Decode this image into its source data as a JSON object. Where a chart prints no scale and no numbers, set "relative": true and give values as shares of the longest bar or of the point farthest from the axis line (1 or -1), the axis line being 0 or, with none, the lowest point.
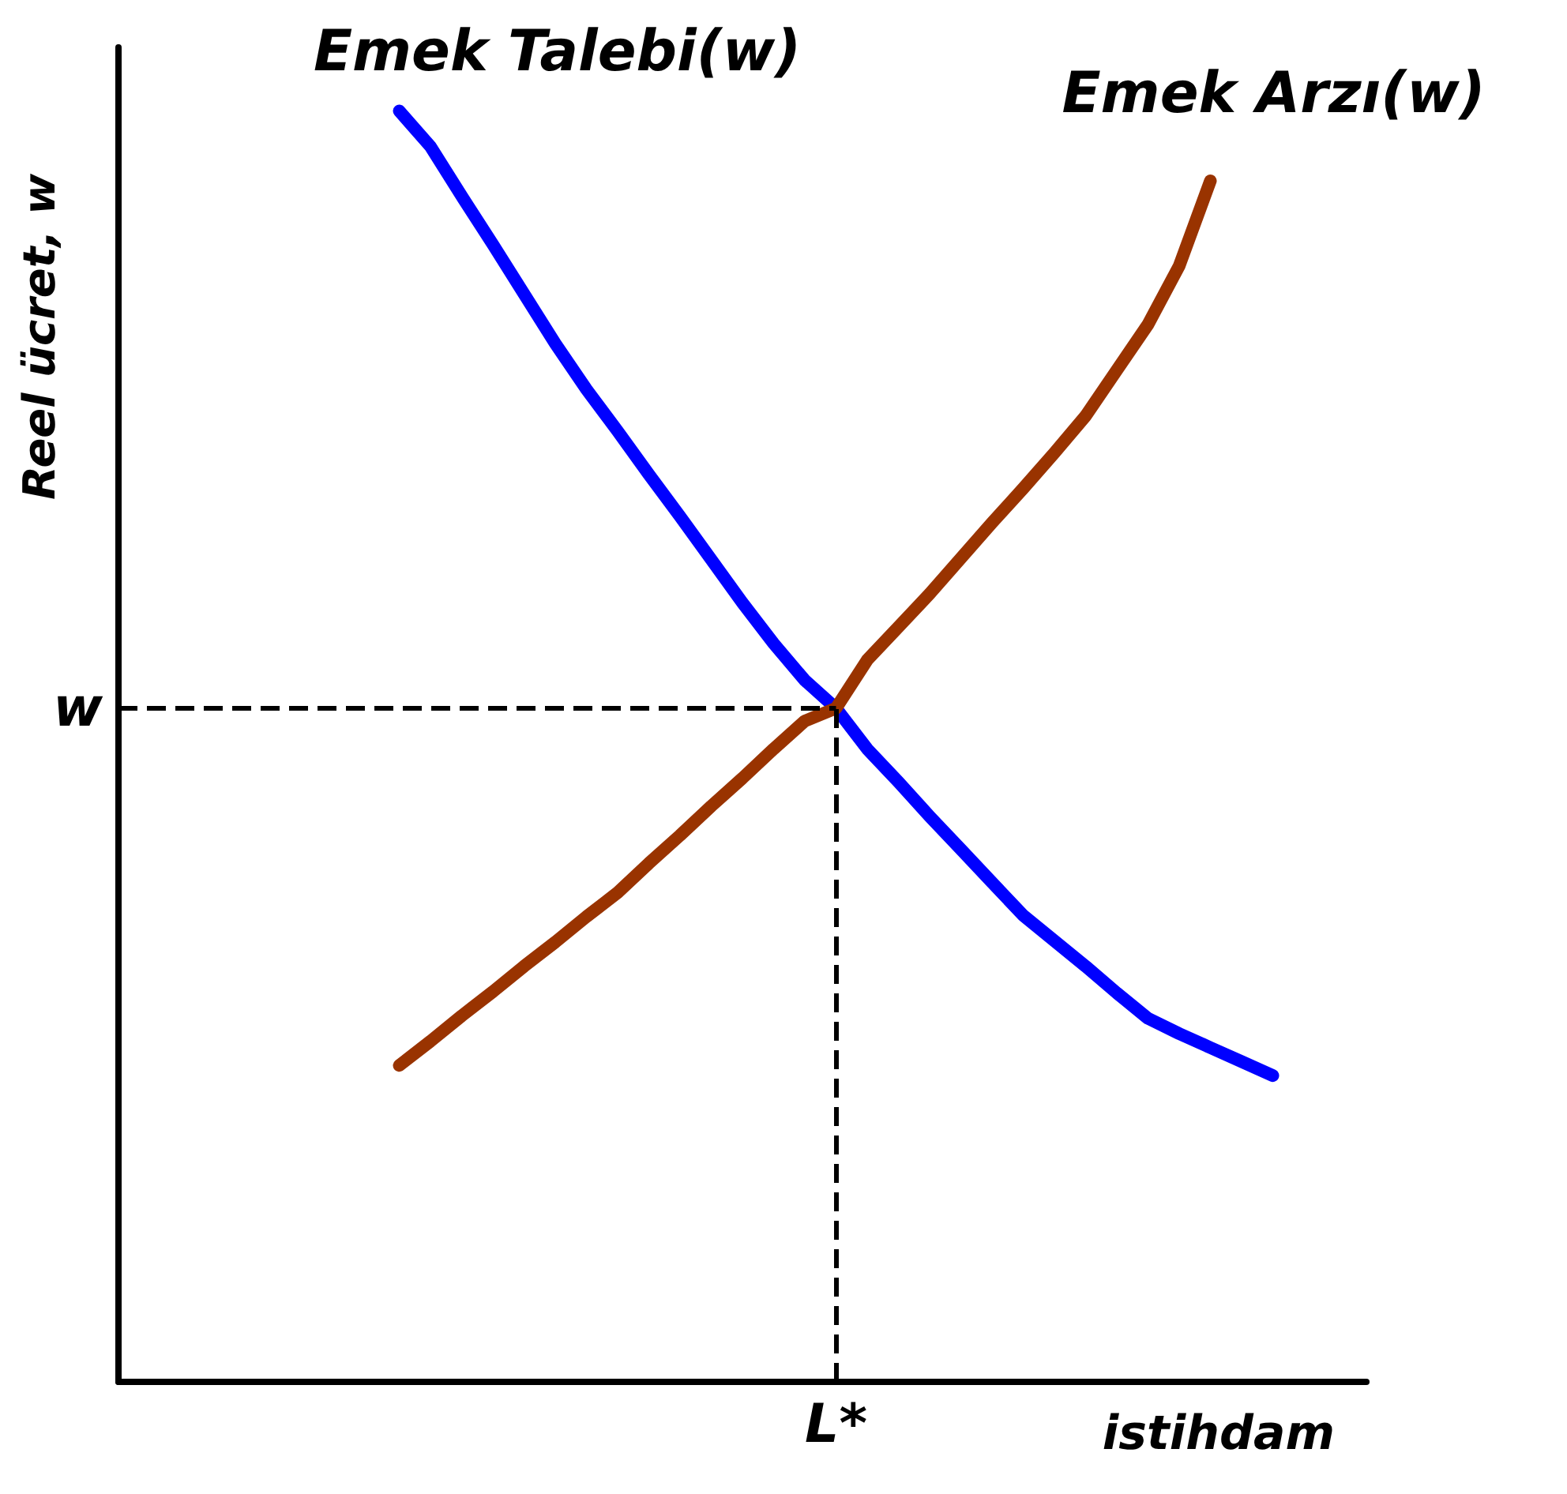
{
  "chart_data": {
    "type": "line",
    "relative": true,
    "xlabel": "istihdam",
    "ylabel": "Reel ücret, w",
    "grid": false,
    "legend": false,
    "marker": "none",
    "line_style": "solid",
    "categories": [
      null,
      null,
      null,
      null,
      null,
      null,
      null,
      null,
      null,
      null,
      null,
      null,
      null,
      null,
      null,
      null,
      null,
      null,
      null,
      null,
      null,
      null,
      null,
      null,
      null,
      null,
      null,
      null,
      null,
      null,
      null,
      null,
      null,
      null,
      null,
      null,
      null,
      null,
      null,
      null,
      null
    ],
    "series": [
      {
        "name": "Emek Talebi(w)",
        "color": "#0000ff",
        "values": [
          null,
          null,
          null,
          null,
          null,
          null,
          null,
          null,
          null,
          1,
          0.972,
          0.933,
          0.895,
          0.856,
          0.817,
          0.781,
          0.748,
          0.714,
          0.681,
          0.647,
          0.613,
          0.581,
          0.552,
          0.53,
          0.498,
          0.472,
          0.445,
          0.419,
          0.393,
          0.367,
          0.347,
          0.327,
          0.306,
          0.286,
          0.274,
          0.263,
          0.252,
          0.241,
          null,
          null,
          null
        ]
      },
      {
        "name": "Emek Arzı(w)",
        "color": "#993300",
        "values": [
          null,
          null,
          null,
          null,
          null,
          null,
          null,
          null,
          null,
          0.249,
          0.268,
          0.288,
          0.307,
          0.327,
          0.346,
          0.366,
          0.385,
          0.408,
          0.43,
          0.453,
          0.475,
          0.498,
          0.52,
          0.53,
          0.568,
          0.594,
          0.62,
          0.648,
          0.676,
          0.703,
          0.731,
          0.76,
          0.796,
          0.832,
          0.878,
          0.945,
          null,
          null,
          null,
          null,
          null
        ]
      }
    ],
    "ref_lines": [
      {
        "axis": "x",
        "label": "L*",
        "line_style": "dashed",
        "color": "#000000"
      },
      {
        "axis": "y",
        "value": 0.53,
        "label": "w",
        "line_style": "dashed",
        "color": "#000000"
      }
    ]
  }
}
